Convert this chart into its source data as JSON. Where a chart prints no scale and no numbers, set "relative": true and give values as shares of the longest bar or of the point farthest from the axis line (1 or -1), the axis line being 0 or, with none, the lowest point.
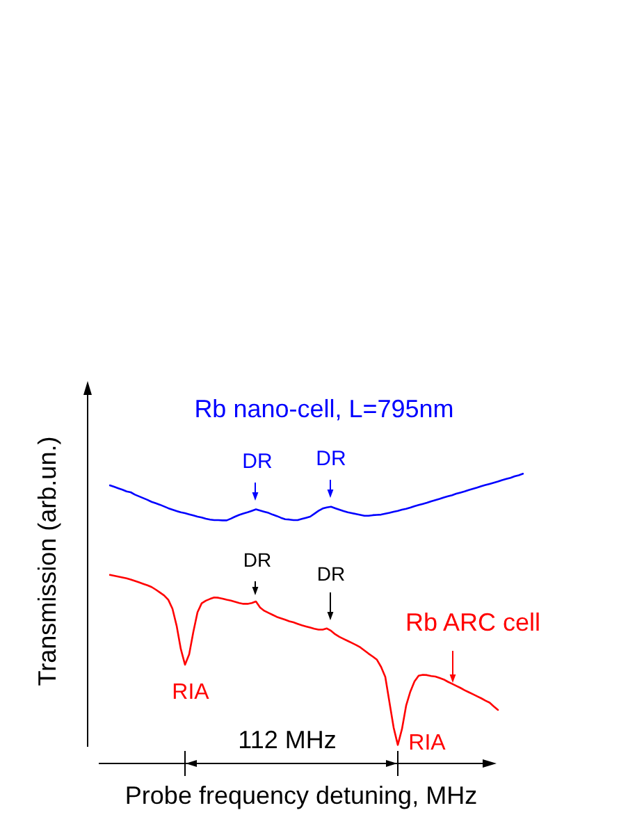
{
  "chart_data": {
    "type": "line",
    "xlabel": "Probe frequency detuning, MHz",
    "ylabel": "Transmission (arb.un.)",
    "relative": true,
    "marker": "none",
    "line_style": "solid",
    "categories": [
      null,
      null,
      null,
      null,
      null,
      null,
      null,
      null,
      null,
      null,
      null,
      null,
      null,
      null,
      null,
      null,
      null,
      null,
      null,
      null,
      null,
      null,
      null,
      null,
      null,
      null,
      null,
      null,
      null,
      null,
      null,
      null,
      null,
      null,
      null,
      null,
      null,
      null,
      null,
      null,
      null,
      null,
      null,
      null,
      null,
      null,
      null,
      null,
      null,
      null,
      null,
      null,
      null,
      null,
      null,
      null,
      null,
      null,
      null,
      null,
      null,
      null,
      null,
      null,
      null,
      null,
      null,
      null,
      null,
      null,
      null,
      null,
      null,
      null,
      null,
      null,
      null,
      null,
      null,
      null,
      null,
      null,
      null,
      null,
      null,
      null,
      null,
      null,
      null,
      null,
      null,
      null,
      null,
      null,
      null,
      null,
      null,
      null,
      null,
      null
    ],
    "annotations": [
      "DR",
      "DR",
      "DR",
      "DR",
      "RIA",
      "RIA",
      "112 MHz"
    ],
    "series": [
      {
        "name": "Rb nano-cell, L=795nm",
        "color": "#0000ff",
        "values": [
          0.96,
          0.955,
          0.95,
          0.945,
          0.939,
          0.936,
          0.928,
          0.922,
          0.916,
          0.91,
          0.903,
          0.898,
          0.893,
          0.887,
          0.881,
          0.876,
          0.871,
          0.867,
          0.864,
          0.86,
          0.856,
          0.852,
          0.849,
          0.845,
          0.842,
          0.84,
          0.84,
          0.839,
          0.839,
          0.845,
          0.852,
          0.858,
          0.863,
          0.867,
          0.872,
          0.877,
          0.873,
          0.869,
          0.865,
          0.859,
          0.854,
          0.848,
          0.843,
          0.842,
          0.84,
          0.84,
          0.844,
          0.848,
          0.852,
          0.862,
          0.872,
          0.88,
          0.884,
          0.886,
          0.881,
          0.876,
          0.871,
          0.867,
          0.864,
          0.861,
          0.858,
          0.855,
          0.855,
          0.857,
          0.858,
          0.859,
          0.862,
          0.865,
          0.869,
          0.872,
          0.876,
          0.879,
          0.883,
          0.888,
          0.892,
          0.896,
          0.9,
          0.905,
          0.909,
          0.913,
          0.918,
          0.922,
          0.926,
          0.931,
          0.935,
          0.939,
          0.944,
          0.948,
          0.952,
          0.957,
          0.961,
          0.965,
          0.969,
          0.973,
          0.978,
          0.982,
          0.986,
          0.991,
          0.995,
          1.0
        ]
      },
      {
        "name": "Rb ARC cell",
        "color": "#ff0000",
        "values": [
          0.651,
          0.648,
          0.645,
          0.642,
          0.639,
          0.635,
          0.63,
          0.625,
          0.62,
          0.615,
          0.609,
          0.6,
          0.59,
          0.58,
          0.565,
          0.534,
          0.475,
          0.395,
          0.341,
          0.377,
          0.454,
          0.522,
          0.553,
          0.562,
          0.568,
          0.573,
          0.572,
          0.569,
          0.565,
          0.562,
          0.558,
          0.554,
          0.551,
          0.551,
          0.554,
          0.559,
          0.538,
          0.527,
          0.52,
          0.513,
          0.506,
          0.501,
          0.496,
          0.491,
          0.487,
          0.482,
          0.477,
          0.473,
          0.469,
          0.465,
          0.462,
          0.462,
          0.466,
          0.458,
          0.446,
          0.437,
          0.43,
          0.423,
          0.416,
          0.409,
          0.401,
          0.39,
          0.379,
          0.369,
          0.358,
          0.333,
          0.299,
          0.211,
          0.124,
          0.064,
          0.119,
          0.2,
          0.248,
          0.283,
          0.303,
          0.306,
          0.305,
          0.302,
          0.3,
          0.295,
          0.29,
          0.282,
          0.275,
          0.268,
          0.261,
          0.253,
          0.246,
          0.239,
          0.232,
          0.225,
          0.217,
          0.21,
          0.197,
          0.185,
          null,
          null,
          null,
          null,
          null,
          null
        ]
      }
    ]
  }
}
